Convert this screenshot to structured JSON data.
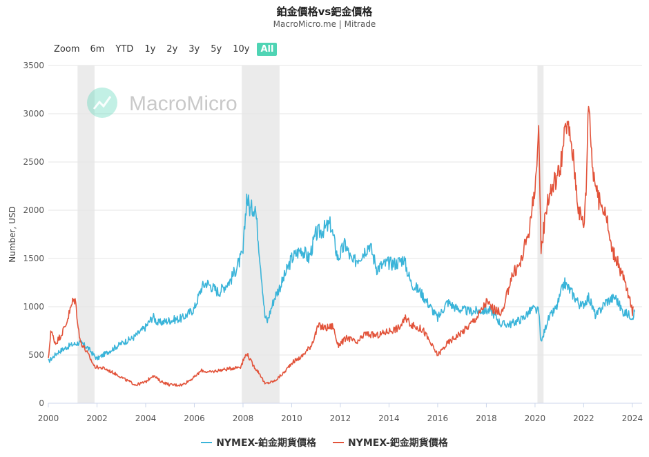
{
  "title": "鉑金價格vs鈀金價格",
  "subtitle": "MacroMicro.me | Mitrade",
  "zoom": {
    "label": "Zoom",
    "buttons": [
      "6m",
      "YTD",
      "1y",
      "2y",
      "3y",
      "5y",
      "10y",
      "All"
    ],
    "active": "All"
  },
  "watermark": "MacroMicro",
  "colors": {
    "platinum": "#3ab4d9",
    "palladium": "#e2533a",
    "recession": "#ebebeb",
    "accent": "#4fd4b4"
  },
  "chart_data": {
    "type": "line",
    "ylabel": "Number, USD",
    "xlabel": "",
    "xlim": [
      2000,
      2024.4
    ],
    "ylim": [
      0,
      3500
    ],
    "x_ticks": [
      "2000",
      "2002",
      "2004",
      "2006",
      "2008",
      "2010",
      "2012",
      "2014",
      "2016",
      "2018",
      "2020",
      "2022",
      "2024"
    ],
    "y_ticks": [
      "0",
      "500",
      "1000",
      "1500",
      "2000",
      "2500",
      "3000",
      "3500"
    ],
    "recession_bands": [
      [
        2001.2,
        2001.9
      ],
      [
        2007.95,
        2009.5
      ],
      [
        2020.1,
        2020.35
      ]
    ],
    "series": [
      {
        "name": "NYMEX-鉑金期貨價格",
        "color": "#3ab4d9",
        "points": [
          [
            2000.0,
            430
          ],
          [
            2000.4,
            530
          ],
          [
            2000.9,
            600
          ],
          [
            2001.3,
            630
          ],
          [
            2001.6,
            580
          ],
          [
            2002.0,
            460
          ],
          [
            2002.5,
            540
          ],
          [
            2003.0,
            620
          ],
          [
            2003.5,
            680
          ],
          [
            2004.0,
            790
          ],
          [
            2004.3,
            900
          ],
          [
            2004.5,
            830
          ],
          [
            2005.0,
            860
          ],
          [
            2005.5,
            880
          ],
          [
            2006.0,
            980
          ],
          [
            2006.3,
            1200
          ],
          [
            2006.5,
            1250
          ],
          [
            2007.0,
            1150
          ],
          [
            2007.5,
            1280
          ],
          [
            2008.0,
            1550
          ],
          [
            2008.15,
            2150
          ],
          [
            2008.3,
            2000
          ],
          [
            2008.5,
            2050
          ],
          [
            2008.7,
            1500
          ],
          [
            2008.9,
            900
          ],
          [
            2009.0,
            850
          ],
          [
            2009.3,
            1100
          ],
          [
            2009.6,
            1250
          ],
          [
            2010.0,
            1500
          ],
          [
            2010.4,
            1600
          ],
          [
            2010.7,
            1500
          ],
          [
            2011.0,
            1750
          ],
          [
            2011.3,
            1800
          ],
          [
            2011.6,
            1850
          ],
          [
            2011.9,
            1500
          ],
          [
            2012.2,
            1650
          ],
          [
            2012.5,
            1450
          ],
          [
            2012.9,
            1550
          ],
          [
            2013.2,
            1650
          ],
          [
            2013.5,
            1400
          ],
          [
            2013.9,
            1450
          ],
          [
            2014.3,
            1450
          ],
          [
            2014.6,
            1500
          ],
          [
            2014.9,
            1250
          ],
          [
            2015.3,
            1150
          ],
          [
            2015.7,
            1000
          ],
          [
            2016.0,
            880
          ],
          [
            2016.4,
            1050
          ],
          [
            2016.8,
            980
          ],
          [
            2017.3,
            950
          ],
          [
            2017.8,
            960
          ],
          [
            2018.2,
            960
          ],
          [
            2018.6,
            820
          ],
          [
            2019.0,
            820
          ],
          [
            2019.5,
            880
          ],
          [
            2019.9,
            980
          ],
          [
            2020.15,
            950
          ],
          [
            2020.25,
            620
          ],
          [
            2020.5,
            850
          ],
          [
            2020.9,
            1000
          ],
          [
            2021.2,
            1250
          ],
          [
            2021.5,
            1150
          ],
          [
            2021.9,
            1000
          ],
          [
            2022.2,
            1100
          ],
          [
            2022.5,
            900
          ],
          [
            2022.9,
            1050
          ],
          [
            2023.3,
            1100
          ],
          [
            2023.6,
            950
          ],
          [
            2024.0,
            900
          ],
          [
            2024.1,
            950
          ]
        ]
      },
      {
        "name": "NYMEX-鈀金期貨價格",
        "color": "#e2533a",
        "points": [
          [
            2000.0,
            450
          ],
          [
            2000.1,
            750
          ],
          [
            2000.3,
            620
          ],
          [
            2000.5,
            700
          ],
          [
            2000.7,
            800
          ],
          [
            2001.0,
            1050
          ],
          [
            2001.1,
            1080
          ],
          [
            2001.3,
            650
          ],
          [
            2001.6,
            520
          ],
          [
            2001.9,
            380
          ],
          [
            2002.3,
            360
          ],
          [
            2002.8,
            300
          ],
          [
            2003.2,
            240
          ],
          [
            2003.6,
            190
          ],
          [
            2004.0,
            220
          ],
          [
            2004.3,
            290
          ],
          [
            2004.6,
            230
          ],
          [
            2005.0,
            190
          ],
          [
            2005.5,
            190
          ],
          [
            2006.0,
            270
          ],
          [
            2006.3,
            340
          ],
          [
            2006.6,
            320
          ],
          [
            2007.0,
            340
          ],
          [
            2007.5,
            360
          ],
          [
            2007.9,
            380
          ],
          [
            2008.15,
            520
          ],
          [
            2008.4,
            400
          ],
          [
            2008.7,
            300
          ],
          [
            2008.9,
            200
          ],
          [
            2009.3,
            230
          ],
          [
            2009.7,
            320
          ],
          [
            2010.0,
            420
          ],
          [
            2010.4,
            480
          ],
          [
            2010.8,
            600
          ],
          [
            2011.1,
            800
          ],
          [
            2011.4,
            780
          ],
          [
            2011.7,
            800
          ],
          [
            2011.9,
            600
          ],
          [
            2012.3,
            680
          ],
          [
            2012.7,
            620
          ],
          [
            2013.0,
            720
          ],
          [
            2013.5,
            700
          ],
          [
            2014.0,
            750
          ],
          [
            2014.4,
            780
          ],
          [
            2014.7,
            880
          ],
          [
            2015.0,
            800
          ],
          [
            2015.4,
            760
          ],
          [
            2015.8,
            580
          ],
          [
            2016.0,
            500
          ],
          [
            2016.4,
            620
          ],
          [
            2016.8,
            700
          ],
          [
            2017.2,
            780
          ],
          [
            2017.7,
            920
          ],
          [
            2018.0,
            1050
          ],
          [
            2018.4,
            950
          ],
          [
            2018.7,
            950
          ],
          [
            2019.0,
            1300
          ],
          [
            2019.4,
            1450
          ],
          [
            2019.8,
            1850
          ],
          [
            2020.1,
            2500
          ],
          [
            2020.15,
            2750
          ],
          [
            2020.25,
            1600
          ],
          [
            2020.5,
            2100
          ],
          [
            2020.8,
            2300
          ],
          [
            2021.0,
            2400
          ],
          [
            2021.3,
            2900
          ],
          [
            2021.5,
            2700
          ],
          [
            2021.8,
            2000
          ],
          [
            2022.0,
            1850
          ],
          [
            2022.1,
            2200
          ],
          [
            2022.2,
            3200
          ],
          [
            2022.35,
            2500
          ],
          [
            2022.6,
            2100
          ],
          [
            2022.9,
            2000
          ],
          [
            2023.1,
            1650
          ],
          [
            2023.4,
            1450
          ],
          [
            2023.7,
            1250
          ],
          [
            2024.0,
            950
          ],
          [
            2024.05,
            1000
          ]
        ]
      }
    ]
  }
}
